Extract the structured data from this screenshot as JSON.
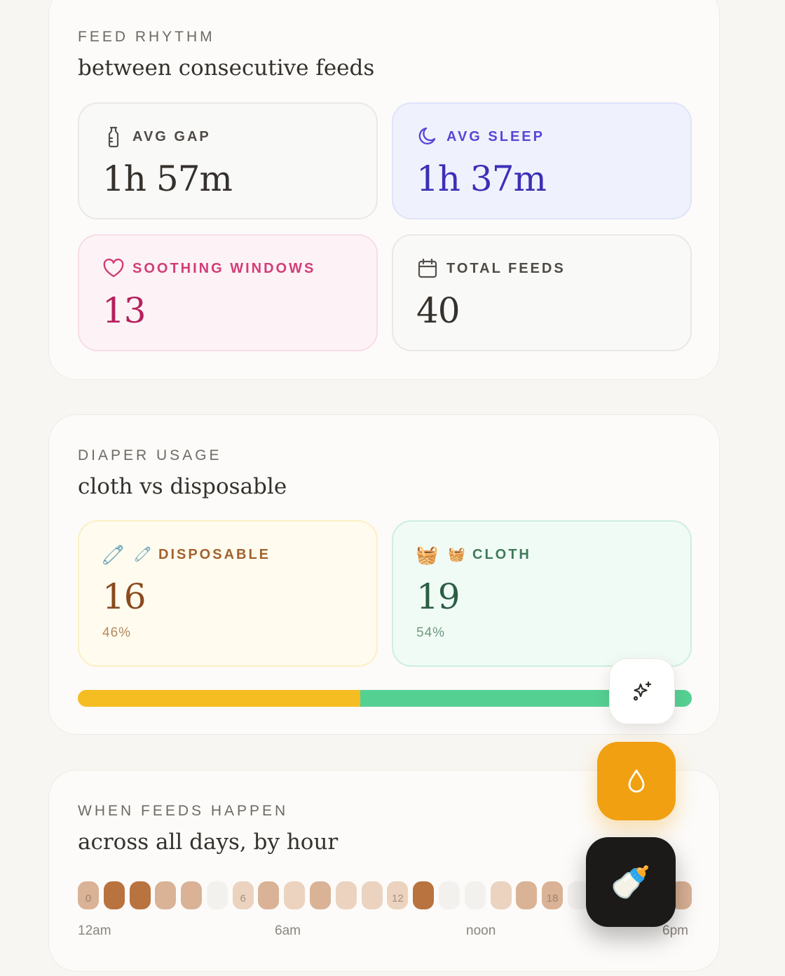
{
  "feed_rhythm": {
    "eyebrow": "FEED RHYTHM",
    "subtitle": "between consecutive feeds",
    "tiles": [
      {
        "icon": "bottle-icon",
        "label": "AVG GAP",
        "value": "1h 57m"
      },
      {
        "icon": "moon-icon",
        "label": "AVG SLEEP",
        "value": "1h 37m"
      },
      {
        "icon": "heart-icon",
        "label": "SOOTHING WINDOWS",
        "value": "13"
      },
      {
        "icon": "calendar-icon",
        "label": "TOTAL FEEDS",
        "value": "40"
      }
    ]
  },
  "diaper_usage": {
    "eyebrow": "DIAPER USAGE",
    "subtitle": "cloth vs disposable",
    "disposable": {
      "emoji": "🧷",
      "label": "DISPOSABLE",
      "count": "16",
      "percent": "46%",
      "share": 0.46,
      "color": "#f5bd22"
    },
    "cloth": {
      "emoji": "🧺",
      "label": "CLOTH",
      "count": "19",
      "percent": "54%",
      "share": 0.54,
      "color": "#55d093"
    }
  },
  "feed_hours": {
    "eyebrow": "WHEN FEEDS HAPPEN",
    "subtitle": "across all days, by hour",
    "hour_labels": [
      "0",
      "6",
      "12",
      "18"
    ],
    "levels": [
      2,
      4,
      4,
      2,
      2,
      0,
      1,
      2,
      1,
      2,
      1,
      1,
      1,
      4,
      0,
      0,
      1,
      2,
      2,
      0,
      0,
      0,
      0,
      2
    ],
    "axis_labels": [
      "12am",
      "6am",
      "noon",
      "6pm"
    ]
  },
  "actions": {
    "sparkle_icon": "sparkle-icon",
    "drop_icon": "drop-icon",
    "bottle_emoji": "🍼"
  }
}
